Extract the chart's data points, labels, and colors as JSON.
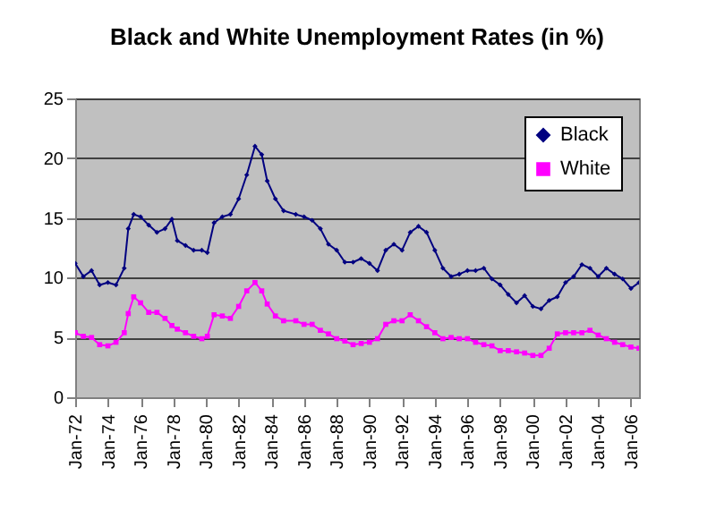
{
  "chart_data": {
    "type": "line",
    "title": "Black and White Unemployment Rates (in %)",
    "x": [
      "1972-01",
      "1972-07",
      "1973-01",
      "1973-07",
      "1974-01",
      "1974-07",
      "1975-01",
      "1975-04",
      "1975-08",
      "1976-01",
      "1976-07",
      "1977-01",
      "1977-07",
      "1977-12",
      "1978-04",
      "1978-10",
      "1979-04",
      "1979-10",
      "1980-02",
      "1980-07",
      "1981-01",
      "1981-07",
      "1982-01",
      "1982-07",
      "1983-01",
      "1983-06",
      "1983-10",
      "1984-04",
      "1984-10",
      "1985-07",
      "1986-01",
      "1986-07",
      "1987-01",
      "1987-07",
      "1988-01",
      "1988-07",
      "1989-01",
      "1989-07",
      "1990-01",
      "1990-07",
      "1991-01",
      "1991-07",
      "1992-01",
      "1992-07",
      "1993-01",
      "1993-07",
      "1994-01",
      "1994-07",
      "1995-01",
      "1995-07",
      "1996-01",
      "1996-07",
      "1997-01",
      "1997-07",
      "1998-01",
      "1998-07",
      "1999-01",
      "1999-07",
      "2000-01",
      "2000-07",
      "2001-01",
      "2001-07",
      "2002-01",
      "2002-07",
      "2003-01",
      "2003-07",
      "2004-01",
      "2004-07",
      "2005-01",
      "2005-07",
      "2006-01",
      "2006-07"
    ],
    "series": [
      {
        "name": "Black",
        "color": "#000080",
        "marker": "diamond",
        "values": [
          11.2,
          10.1,
          10.6,
          9.4,
          9.6,
          9.4,
          10.8,
          14.1,
          15.3,
          15.1,
          14.4,
          13.8,
          14.1,
          14.9,
          13.1,
          12.7,
          12.3,
          12.3,
          12.1,
          14.6,
          15.1,
          15.3,
          16.6,
          18.6,
          21.0,
          20.3,
          18.1,
          16.6,
          15.6,
          15.3,
          15.1,
          14.8,
          14.1,
          12.8,
          12.3,
          11.3,
          11.3,
          11.6,
          11.2,
          10.6,
          12.3,
          12.8,
          12.3,
          13.8,
          14.3,
          13.8,
          12.3,
          10.8,
          10.1,
          10.3,
          10.6,
          10.6,
          10.8,
          9.9,
          9.4,
          8.6,
          7.9,
          8.5,
          7.6,
          7.4,
          8.1,
          8.4,
          9.6,
          10.1,
          11.1,
          10.8,
          10.1,
          10.8,
          10.3,
          9.9,
          9.1,
          9.6
        ]
      },
      {
        "name": "White",
        "color": "#ff00ff",
        "marker": "square",
        "values": [
          5.4,
          5.1,
          5.0,
          4.4,
          4.3,
          4.6,
          5.4,
          7.0,
          8.4,
          7.9,
          7.1,
          7.1,
          6.6,
          6.0,
          5.7,
          5.4,
          5.1,
          4.9,
          5.1,
          6.9,
          6.8,
          6.6,
          7.6,
          8.9,
          9.6,
          8.9,
          7.8,
          6.8,
          6.4,
          6.4,
          6.1,
          6.1,
          5.6,
          5.3,
          4.9,
          4.7,
          4.4,
          4.5,
          4.6,
          4.9,
          6.1,
          6.4,
          6.4,
          6.9,
          6.4,
          5.9,
          5.4,
          4.9,
          5.0,
          4.9,
          4.9,
          4.6,
          4.4,
          4.3,
          3.9,
          3.9,
          3.8,
          3.7,
          3.5,
          3.5,
          4.1,
          5.3,
          5.4,
          5.4,
          5.4,
          5.6,
          5.2,
          4.9,
          4.6,
          4.4,
          4.2,
          4.1
        ]
      }
    ],
    "xlim": [
      "1972-01",
      "2006-07"
    ],
    "xticks": [
      {
        "value": "1972-01",
        "label": "Jan-72"
      },
      {
        "value": "1974-01",
        "label": "Jan-74"
      },
      {
        "value": "1976-01",
        "label": "Jan-76"
      },
      {
        "value": "1978-01",
        "label": "Jan-78"
      },
      {
        "value": "1980-01",
        "label": "Jan-80"
      },
      {
        "value": "1982-01",
        "label": "Jan-82"
      },
      {
        "value": "1984-01",
        "label": "Jan-84"
      },
      {
        "value": "1986-01",
        "label": "Jan-86"
      },
      {
        "value": "1988-01",
        "label": "Jan-88"
      },
      {
        "value": "1990-01",
        "label": "Jan-90"
      },
      {
        "value": "1992-01",
        "label": "Jan-92"
      },
      {
        "value": "1994-01",
        "label": "Jan-94"
      },
      {
        "value": "1996-01",
        "label": "Jan-96"
      },
      {
        "value": "1998-01",
        "label": "Jan-98"
      },
      {
        "value": "2000-01",
        "label": "Jan-00"
      },
      {
        "value": "2002-01",
        "label": "Jan-02"
      },
      {
        "value": "2004-01",
        "label": "Jan-04"
      },
      {
        "value": "2006-01",
        "label": "Jan-06"
      }
    ],
    "ylim": [
      0,
      25
    ],
    "yticks": [
      0,
      5,
      10,
      15,
      20,
      25
    ],
    "grid": "y",
    "legend": "top right",
    "line_style": "solid"
  }
}
